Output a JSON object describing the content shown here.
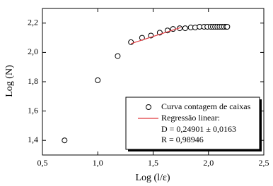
{
  "chart_data": {
    "type": "scatter",
    "xlabel": "Log (l/ε)",
    "ylabel": "Log (N)",
    "xlim": [
      0.5,
      2.5
    ],
    "ylim": [
      1.3,
      2.3
    ],
    "xticks": [
      {
        "value": 0.5,
        "label": "0,5"
      },
      {
        "value": 1.0,
        "label": "1,0"
      },
      {
        "value": 1.5,
        "label": "1,5"
      },
      {
        "value": 2.0,
        "label": "2,0"
      },
      {
        "value": 2.5,
        "label": "2,5"
      }
    ],
    "yticks": [
      {
        "value": 1.4,
        "label": "1,4"
      },
      {
        "value": 1.6,
        "label": "1,6"
      },
      {
        "value": 1.8,
        "label": "1,8"
      },
      {
        "value": 2.0,
        "label": "2,0"
      },
      {
        "value": 2.2,
        "label": "2,2"
      }
    ],
    "legend": "lower right",
    "series": [
      {
        "name": "Curva contagem de caixas",
        "type": "scatter",
        "color": "#000000",
        "x": [
          0.7,
          1.0,
          1.18,
          1.3,
          1.4,
          1.48,
          1.56,
          1.63,
          1.68,
          1.74,
          1.79,
          1.84,
          1.88,
          1.92,
          1.96,
          1.99,
          2.02,
          2.04,
          2.06,
          2.08,
          2.1,
          2.12,
          2.14,
          2.16,
          2.17
        ],
        "values": [
          1.4,
          1.81,
          1.975,
          2.07,
          2.1,
          2.115,
          2.135,
          2.15,
          2.16,
          2.165,
          2.165,
          2.17,
          2.17,
          2.175,
          2.175,
          2.175,
          2.175,
          2.175,
          2.175,
          2.175,
          2.175,
          2.175,
          2.175,
          2.175,
          2.175
        ]
      },
      {
        "name": "Regressão linear:",
        "type": "line",
        "color": "#e0393e",
        "x": [
          1.3,
          1.75
        ],
        "values": [
          2.06,
          2.17
        ]
      }
    ],
    "legend_notes": [
      "D = 0,24901 ± 0,0163",
      "R = 0,98946"
    ]
  }
}
